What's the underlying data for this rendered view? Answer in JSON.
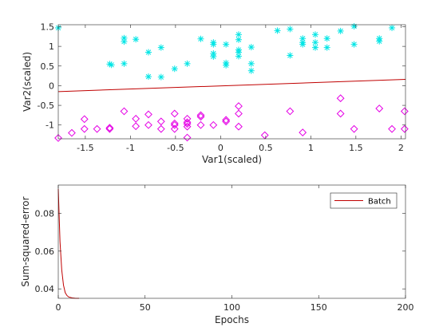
{
  "chart_data": [
    {
      "type": "scatter",
      "xlabel": "Var1(scaled)",
      "ylabel": "Var2(scaled)",
      "xlim": [
        -1.8,
        2.05
      ],
      "ylim": [
        -1.35,
        1.55
      ],
      "xticks": [
        -1.5,
        -1,
        -0.5,
        0,
        0.5,
        1,
        1.5,
        2
      ],
      "xtick_labels": [
        "-1.5",
        "-1",
        "-0.5",
        "0",
        "0.5",
        "1",
        "1.5",
        "2"
      ],
      "yticks": [
        -1,
        -0.5,
        0,
        0.5,
        1,
        1.5
      ],
      "ytick_labels": [
        "-1",
        "-0.5",
        "0",
        "0.5",
        "1",
        "1.5"
      ],
      "grid": false,
      "series": [
        {
          "marker": "asterisk",
          "color": "#00e5e5",
          "points": [
            [
              -1.8,
              1.47
            ],
            [
              -1.23,
              0.55
            ],
            [
              -1.21,
              0.53
            ],
            [
              -1.07,
              1.21
            ],
            [
              -1.07,
              1.12
            ],
            [
              -1.07,
              0.56
            ],
            [
              -0.94,
              1.18
            ],
            [
              -0.8,
              0.85
            ],
            [
              -0.8,
              0.23
            ],
            [
              -0.66,
              0.97
            ],
            [
              -0.66,
              0.22
            ],
            [
              -0.51,
              0.43
            ],
            [
              -0.37,
              0.56
            ],
            [
              -0.22,
              1.19
            ],
            [
              -0.08,
              1.1
            ],
            [
              -0.08,
              1.05
            ],
            [
              -0.08,
              0.82
            ],
            [
              -0.08,
              0.74
            ],
            [
              0.06,
              1.05
            ],
            [
              0.06,
              0.58
            ],
            [
              0.06,
              0.52
            ],
            [
              0.2,
              1.3
            ],
            [
              0.2,
              1.17
            ],
            [
              0.2,
              0.91
            ],
            [
              0.2,
              0.85
            ],
            [
              0.2,
              0.75
            ],
            [
              0.34,
              0.98
            ],
            [
              0.34,
              0.56
            ],
            [
              0.34,
              0.38
            ],
            [
              0.63,
              1.4
            ],
            [
              0.77,
              1.44
            ],
            [
              0.77,
              0.77
            ],
            [
              0.91,
              1.2
            ],
            [
              0.91,
              1.1
            ],
            [
              0.91,
              1.05
            ],
            [
              1.05,
              1.3
            ],
            [
              1.05,
              1.1
            ],
            [
              1.05,
              0.97
            ],
            [
              1.18,
              1.2
            ],
            [
              1.18,
              0.97
            ],
            [
              1.33,
              1.39
            ],
            [
              1.48,
              1.51
            ],
            [
              1.48,
              1.05
            ],
            [
              1.76,
              1.2
            ],
            [
              1.76,
              1.13
            ],
            [
              1.9,
              1.47
            ]
          ]
        },
        {
          "marker": "diamond",
          "color": "#e500e5",
          "points": [
            [
              -1.8,
              -1.33
            ],
            [
              -1.65,
              -1.2
            ],
            [
              -1.51,
              -1.1
            ],
            [
              -1.51,
              -0.85
            ],
            [
              -1.37,
              -1.1
            ],
            [
              -1.23,
              -1.07
            ],
            [
              -1.23,
              -1.1
            ],
            [
              -1.07,
              -0.65
            ],
            [
              -0.94,
              -0.84
            ],
            [
              -0.94,
              -1.03
            ],
            [
              -0.8,
              -0.73
            ],
            [
              -0.8,
              -1.0
            ],
            [
              -0.66,
              -0.91
            ],
            [
              -0.66,
              -1.1
            ],
            [
              -0.51,
              -0.71
            ],
            [
              -0.51,
              -0.96
            ],
            [
              -0.51,
              -1.0
            ],
            [
              -0.51,
              -1.1
            ],
            [
              -0.37,
              -0.84
            ],
            [
              -0.37,
              -0.93
            ],
            [
              -0.37,
              -0.97
            ],
            [
              -0.37,
              -1.04
            ],
            [
              -0.37,
              -1.32
            ],
            [
              -0.22,
              -0.75
            ],
            [
              -0.22,
              -0.79
            ],
            [
              -0.22,
              -1.0
            ],
            [
              -0.08,
              -1.0
            ],
            [
              0.06,
              -0.87
            ],
            [
              0.06,
              -0.91
            ],
            [
              0.2,
              -0.52
            ],
            [
              0.2,
              -0.71
            ],
            [
              0.2,
              -1.04
            ],
            [
              0.49,
              -1.26
            ],
            [
              0.77,
              -0.65
            ],
            [
              0.91,
              -1.19
            ],
            [
              1.33,
              -0.32
            ],
            [
              1.33,
              -0.71
            ],
            [
              1.48,
              -1.1
            ],
            [
              1.76,
              -0.58
            ],
            [
              1.9,
              -1.1
            ],
            [
              2.04,
              -0.65
            ],
            [
              2.04,
              -1.1
            ]
          ]
        }
      ],
      "decision_line": {
        "color": "#c00000",
        "points": [
          [
            -1.8,
            -0.15
          ],
          [
            2.05,
            0.16
          ]
        ]
      }
    },
    {
      "type": "line",
      "xlabel": "Epochs",
      "ylabel": "Sum-squared-error",
      "xlim": [
        0,
        200
      ],
      "ylim": [
        0.035,
        0.095
      ],
      "xticks": [
        0,
        50,
        100,
        150,
        200
      ],
      "xtick_labels": [
        "0",
        "50",
        "100",
        "150",
        "200"
      ],
      "yticks": [
        0.04,
        0.06,
        0.08
      ],
      "ytick_labels": [
        "0.04",
        "0.06",
        "0.08"
      ],
      "grid": false,
      "legend_position": "top-right",
      "series": [
        {
          "name": "Batch",
          "color": "#c00000",
          "x": [
            0,
            1,
            2,
            3,
            4,
            5,
            6,
            8,
            10,
            12
          ],
          "y": [
            0.093,
            0.065,
            0.05,
            0.042,
            0.038,
            0.0365,
            0.0357,
            0.0352,
            0.035,
            0.035
          ]
        }
      ]
    }
  ]
}
